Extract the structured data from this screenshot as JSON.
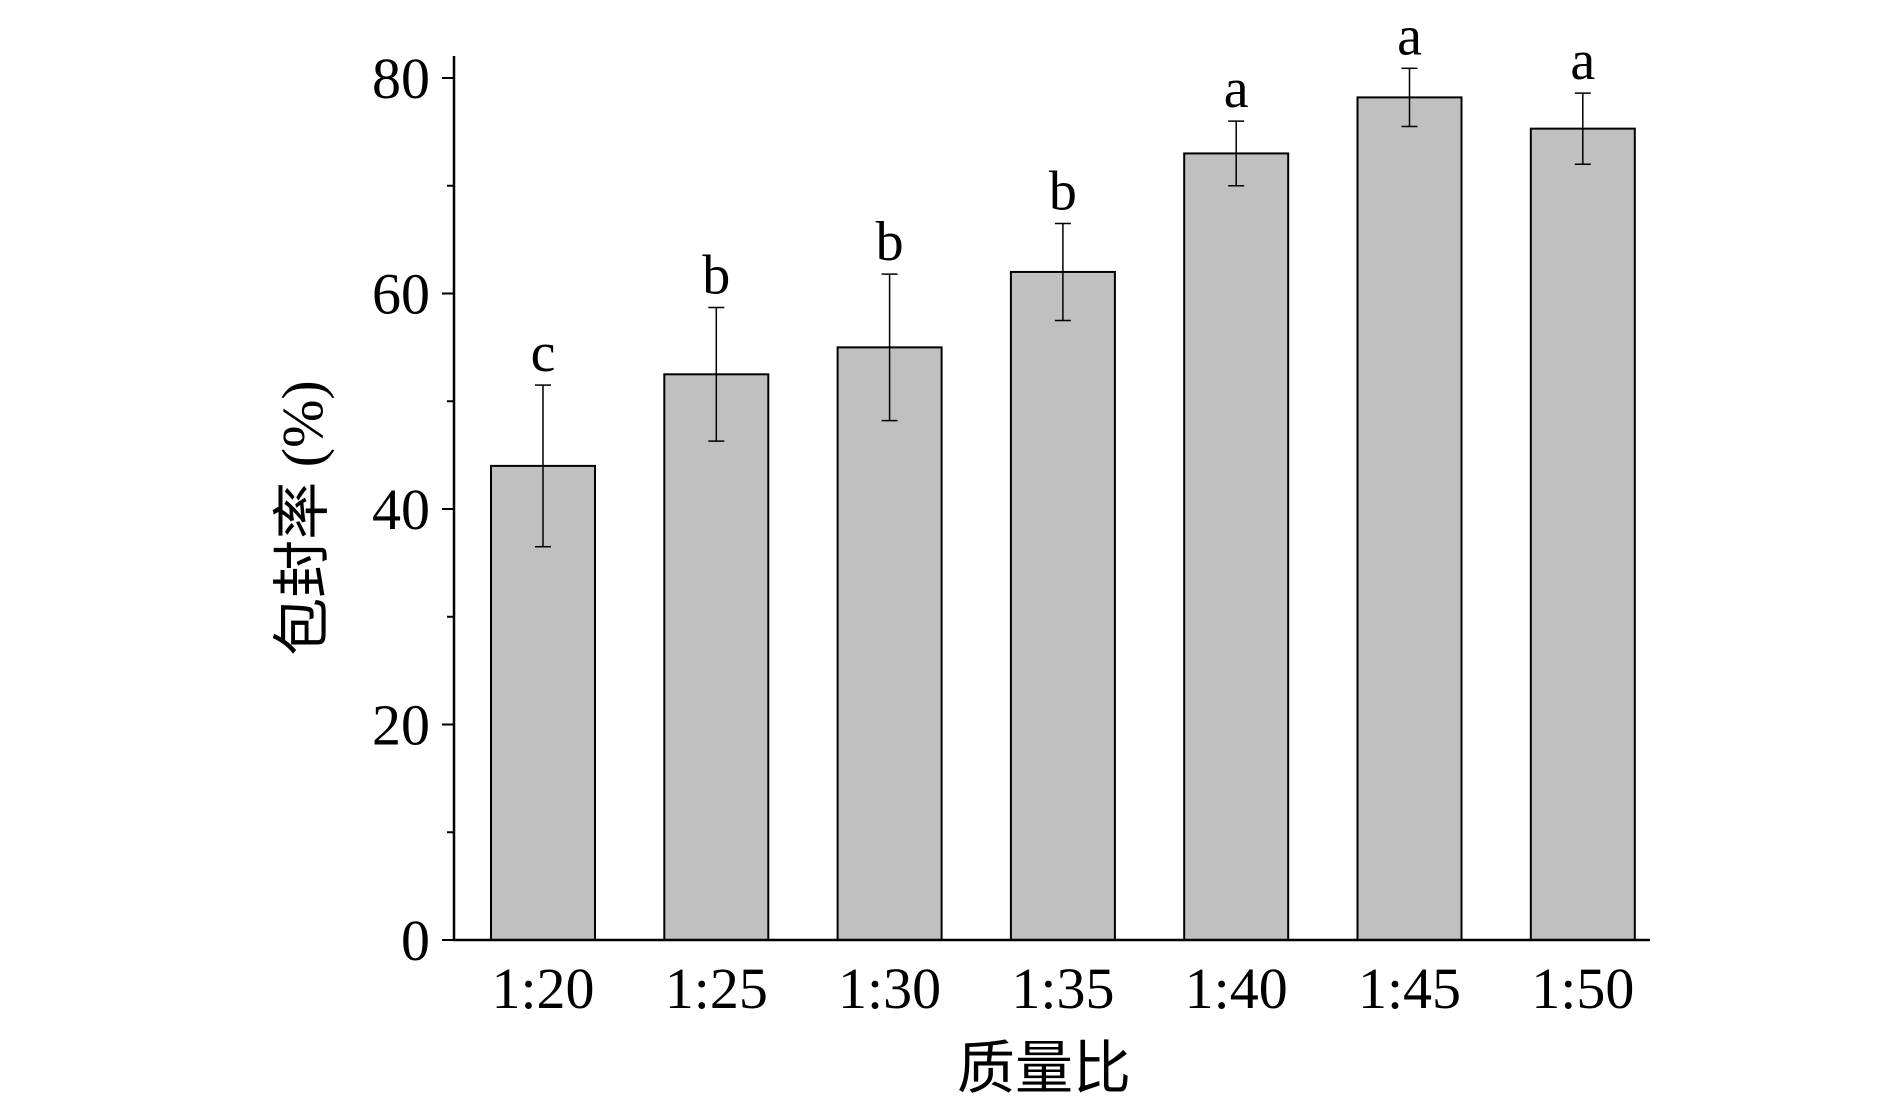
{
  "chart_data": {
    "type": "bar",
    "title": "",
    "xlabel": "质量比",
    "ylabel": "包封率 (%)",
    "categories": [
      "1:20",
      "1:25",
      "1:30",
      "1:35",
      "1:40",
      "1:45",
      "1:50"
    ],
    "series": [
      {
        "values": [
          44.0,
          52.5,
          55.0,
          62.0,
          73.0,
          78.2,
          75.3
        ],
        "errors": [
          7.5,
          6.2,
          6.8,
          4.5,
          3.0,
          2.7,
          3.3
        ],
        "significance": [
          "c",
          "b",
          "b",
          "b",
          "a",
          "a",
          "a"
        ],
        "color": "#c0c0c0"
      }
    ],
    "ylim": [
      0,
      80
    ],
    "yticks": [
      0,
      20,
      40,
      60,
      80
    ],
    "minor_ticks": true,
    "grid": false,
    "legend": "none"
  }
}
